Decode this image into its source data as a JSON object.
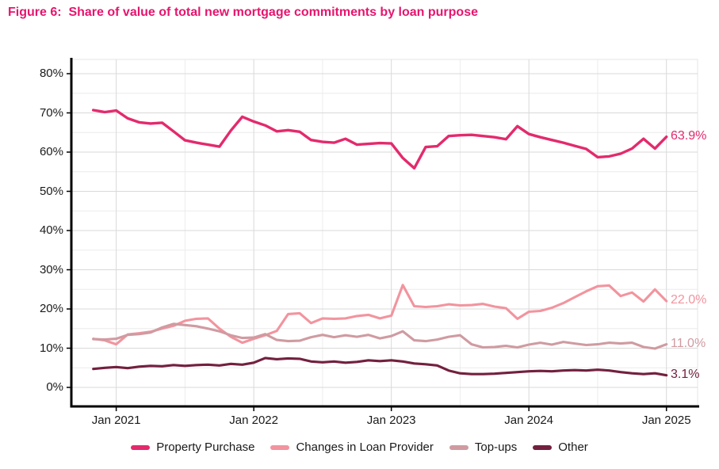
{
  "figure": {
    "title": "Figure 6:  Share of value of total new mortgage commitments by loan purpose"
  },
  "colors": {
    "title_pink": "#e6156e",
    "axis_text": "#1a1a1a",
    "grid_major": "#d9d9d9",
    "grid_minor": "#ececec",
    "plot_border": "#e4e4e4",
    "axis_line": "#000000"
  },
  "chart_data": {
    "type": "line",
    "title": "Figure 6: Share of value of total new mortgage commitments by loan purpose",
    "xlabel": "",
    "ylabel": "",
    "ylim": [
      0,
      80
    ],
    "grid": true,
    "legend_position": "bottom",
    "y_ticks": {
      "values": [
        0,
        10,
        20,
        30,
        40,
        50,
        60,
        70,
        80
      ],
      "labels": [
        "0%",
        "10%",
        "20%",
        "30%",
        "40%",
        "50%",
        "60%",
        "70%",
        "80%"
      ]
    },
    "x_tick_labels": [
      "Jan 2021",
      "Jan 2022",
      "Jan 2023",
      "Jan 2024",
      "Jan 2025"
    ],
    "months": [
      "2020-11",
      "2020-12",
      "2021-01",
      "2021-02",
      "2021-03",
      "2021-04",
      "2021-05",
      "2021-06",
      "2021-07",
      "2021-08",
      "2021-09",
      "2021-10",
      "2021-11",
      "2021-12",
      "2022-01",
      "2022-02",
      "2022-03",
      "2022-04",
      "2022-05",
      "2022-06",
      "2022-07",
      "2022-08",
      "2022-09",
      "2022-10",
      "2022-11",
      "2022-12",
      "2023-01",
      "2023-02",
      "2023-03",
      "2023-04",
      "2023-05",
      "2023-06",
      "2023-07",
      "2023-08",
      "2023-09",
      "2023-10",
      "2023-11",
      "2023-12",
      "2024-01",
      "2024-02",
      "2024-03",
      "2024-04",
      "2024-05",
      "2024-06",
      "2024-07",
      "2024-08",
      "2024-09",
      "2024-10",
      "2024-11",
      "2024-12",
      "2025-01"
    ],
    "series": [
      {
        "name": "Property Purchase",
        "color": "#e32a6d",
        "end_label": "63.9%",
        "values": [
          70.7,
          70.2,
          70.6,
          68.6,
          67.6,
          67.3,
          67.5,
          65.3,
          63.0,
          62.4,
          61.9,
          61.4,
          65.5,
          69.0,
          67.8,
          66.8,
          65.3,
          65.6,
          65.2,
          63.1,
          62.6,
          62.4,
          63.4,
          61.9,
          62.1,
          62.3,
          62.2,
          58.5,
          55.9,
          61.3,
          61.5,
          64.1,
          64.3,
          64.4,
          64.1,
          63.8,
          63.3,
          66.6,
          64.6,
          63.8,
          63.1,
          62.4,
          61.6,
          60.8,
          58.7,
          58.9,
          59.6,
          60.9,
          63.4,
          60.9,
          63.9
        ]
      },
      {
        "name": "Changes in Loan Provider",
        "color": "#f2949e",
        "end_label": "22.0%",
        "values": [
          12.4,
          12.0,
          11.0,
          13.5,
          13.8,
          14.2,
          15.0,
          15.7,
          17.0,
          17.5,
          17.6,
          15.0,
          12.9,
          11.4,
          12.4,
          13.3,
          14.4,
          18.7,
          18.9,
          16.4,
          17.6,
          17.5,
          17.6,
          18.2,
          18.5,
          17.6,
          18.3,
          26.1,
          20.7,
          20.5,
          20.7,
          21.2,
          20.9,
          21.0,
          21.3,
          20.6,
          20.2,
          17.5,
          19.3,
          19.5,
          20.3,
          21.5,
          23.0,
          24.5,
          25.8,
          26.0,
          23.3,
          24.2,
          21.9,
          25.0,
          22.0
        ]
      },
      {
        "name": "Top-ups",
        "color": "#cf9ba1",
        "end_label": "11.0%",
        "values": [
          12.3,
          12.2,
          12.4,
          13.4,
          13.6,
          14.0,
          15.3,
          16.2,
          15.9,
          15.6,
          15.0,
          14.3,
          13.3,
          12.6,
          12.7,
          13.6,
          12.1,
          11.8,
          11.9,
          12.8,
          13.4,
          12.8,
          13.3,
          12.9,
          13.4,
          12.5,
          13.1,
          14.3,
          12.0,
          11.8,
          12.2,
          12.9,
          13.3,
          11.0,
          10.2,
          10.3,
          10.6,
          10.2,
          10.9,
          11.4,
          10.9,
          11.6,
          11.2,
          10.8,
          11.0,
          11.4,
          11.2,
          11.4,
          10.3,
          9.9,
          11.0
        ]
      },
      {
        "name": "Other",
        "color": "#73203f",
        "end_label": "3.1%",
        "values": [
          4.7,
          5.0,
          5.2,
          4.9,
          5.3,
          5.5,
          5.4,
          5.7,
          5.5,
          5.7,
          5.8,
          5.6,
          6.0,
          5.8,
          6.3,
          7.5,
          7.2,
          7.4,
          7.3,
          6.6,
          6.4,
          6.6,
          6.3,
          6.5,
          6.9,
          6.7,
          6.9,
          6.6,
          6.1,
          5.9,
          5.6,
          4.3,
          3.6,
          3.4,
          3.4,
          3.5,
          3.7,
          3.9,
          4.1,
          4.2,
          4.1,
          4.3,
          4.4,
          4.3,
          4.5,
          4.3,
          3.9,
          3.6,
          3.4,
          3.6,
          3.1
        ]
      }
    ]
  }
}
